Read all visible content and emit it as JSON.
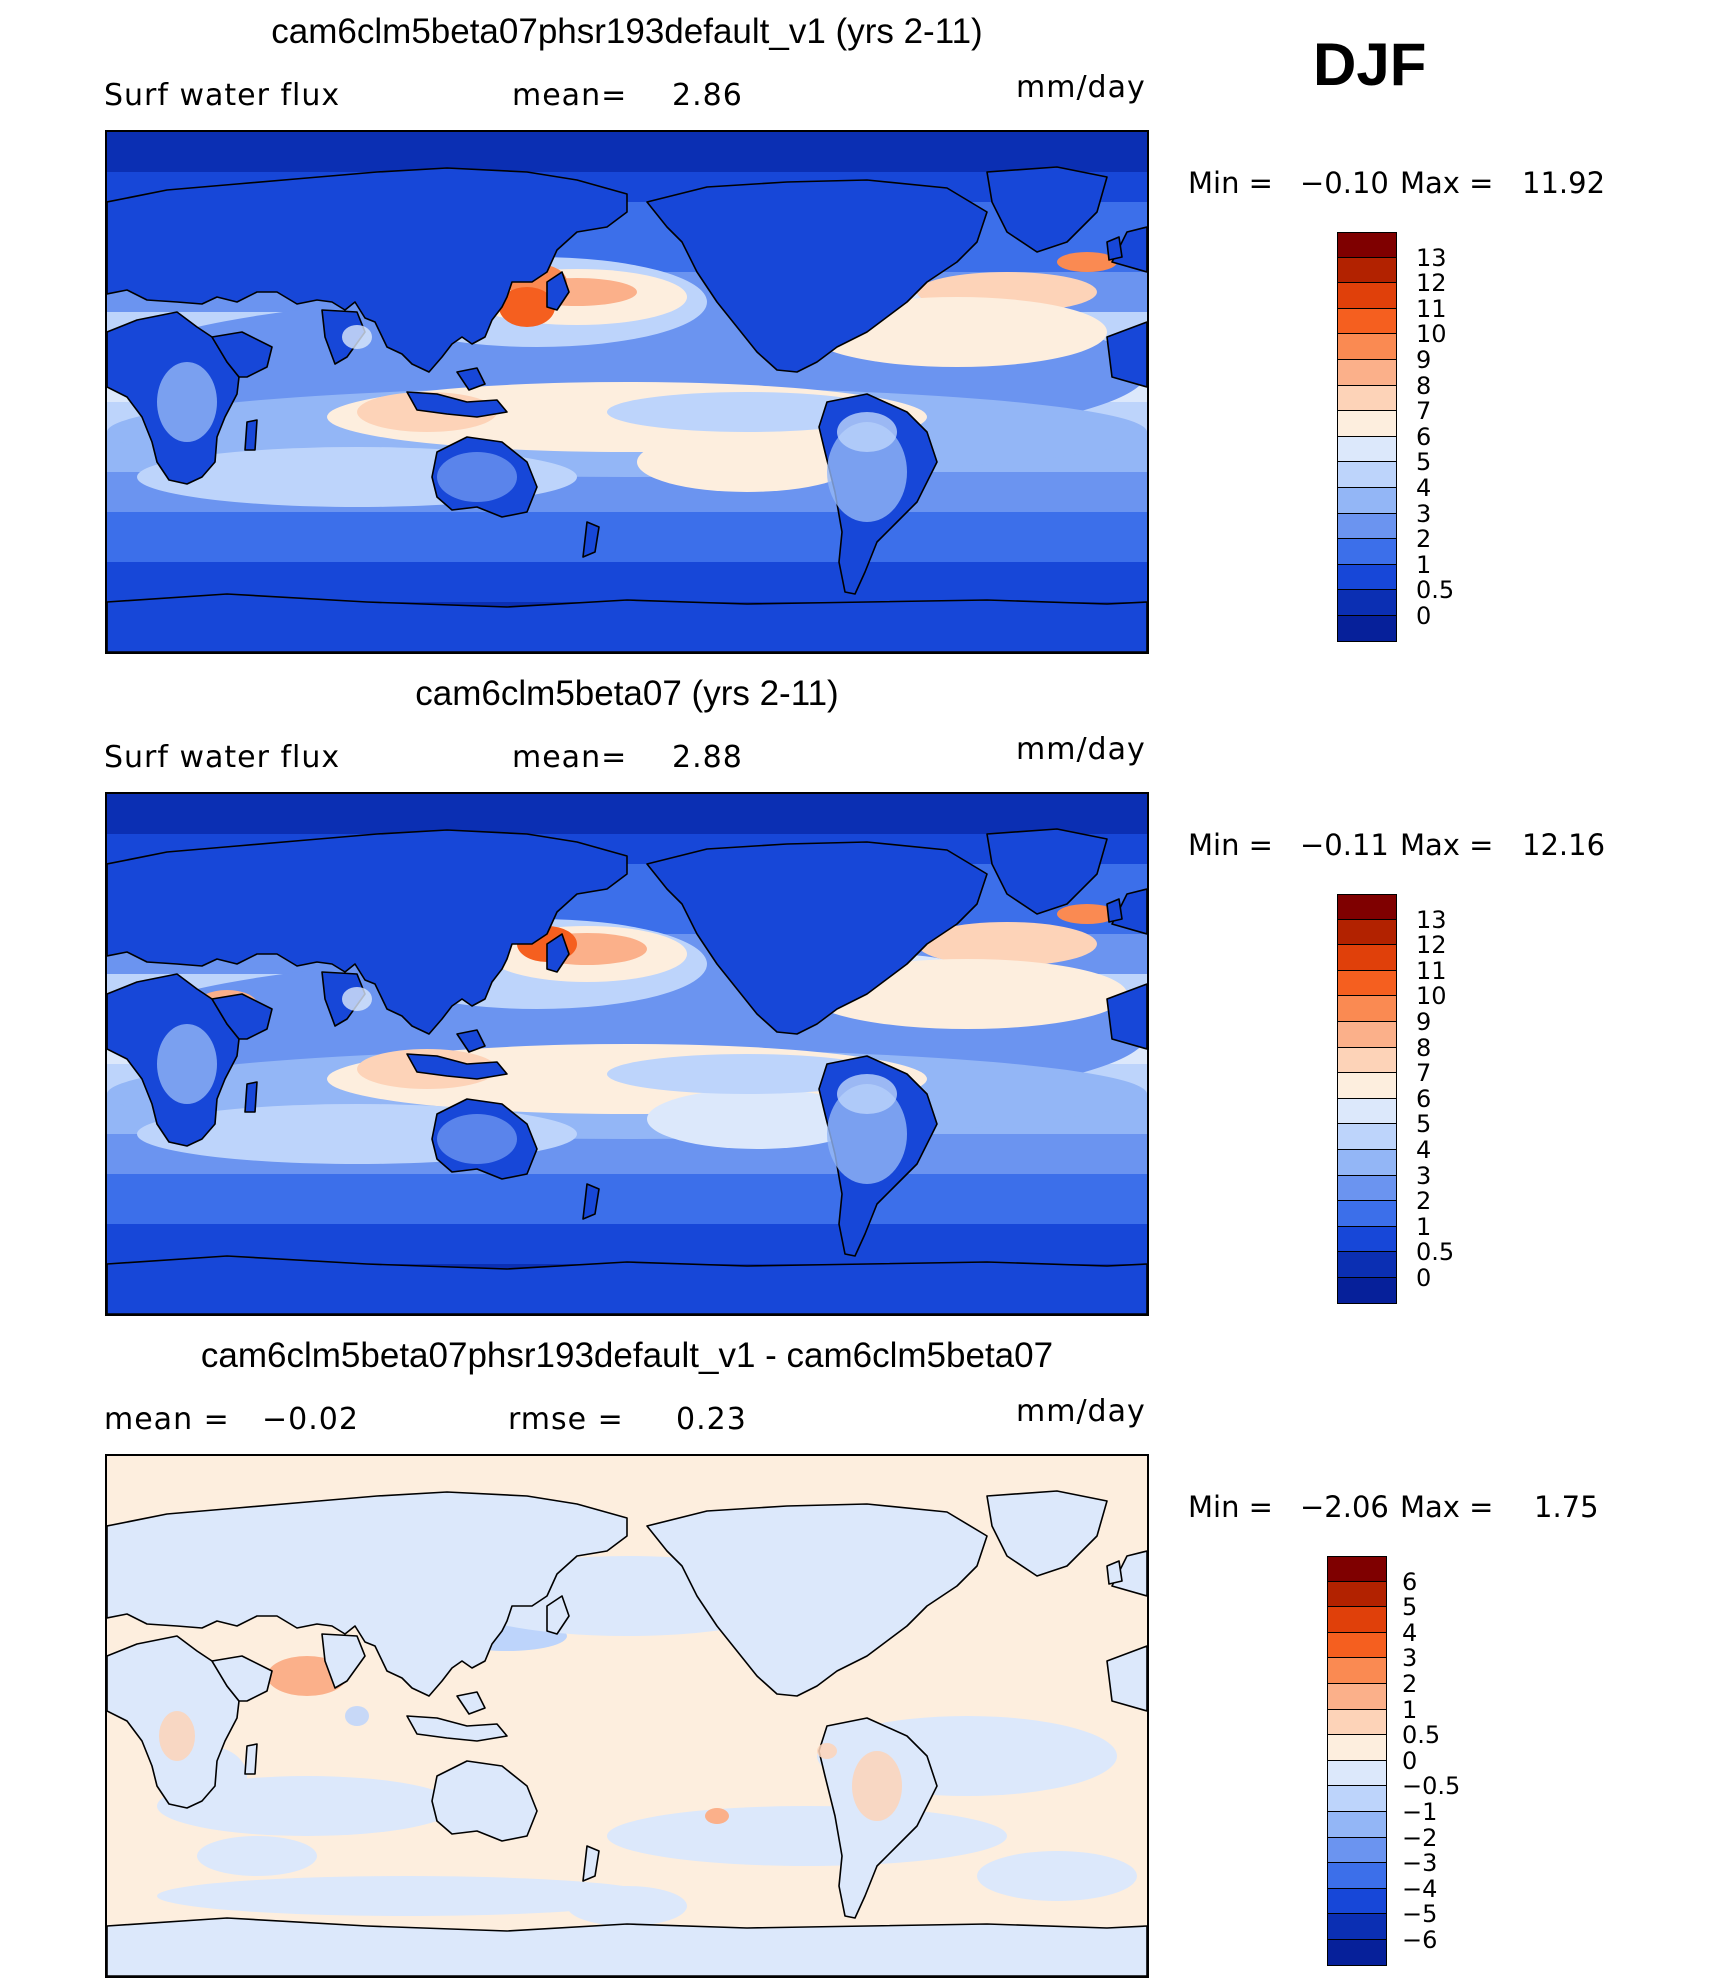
{
  "season": "DJF",
  "panels": [
    {
      "title": "cam6clm5beta07phsr193default_v1 (yrs 2-11)",
      "variable": "Surf water flux",
      "stat1_label": "mean=",
      "stat1_value": "2.86",
      "units": "mm/day",
      "min_label": "Min =",
      "min_value": "−0.10",
      "max_label": "Max =",
      "max_value": "11.92",
      "colorbar": {
        "labels": [
          "13",
          "12",
          "11",
          "10",
          "9",
          "8",
          "7",
          "6",
          "5",
          "4",
          "3",
          "2",
          "1",
          "0.5",
          "0"
        ],
        "colors": [
          "#7f0000",
          "#b22200",
          "#e0400a",
          "#f55f1f",
          "#fa8a52",
          "#fbb08a",
          "#fdd3b8",
          "#fdeede",
          "#dce8fb",
          "#bdd4fb",
          "#93b6f6",
          "#6b94f0",
          "#3c6fea",
          "#1747d8",
          "#0b2fb3",
          "#06209a"
        ]
      },
      "map_scheme": "absolute"
    },
    {
      "title": "cam6clm5beta07 (yrs 2-11)",
      "variable": "Surf water flux",
      "stat1_label": "mean=",
      "stat1_value": "2.88",
      "units": "mm/day",
      "min_label": "Min =",
      "min_value": "−0.11",
      "max_label": "Max =",
      "max_value": "12.16",
      "colorbar": {
        "labels": [
          "13",
          "12",
          "11",
          "10",
          "9",
          "8",
          "7",
          "6",
          "5",
          "4",
          "3",
          "2",
          "1",
          "0.5",
          "0"
        ],
        "colors": [
          "#7f0000",
          "#b22200",
          "#e0400a",
          "#f55f1f",
          "#fa8a52",
          "#fbb08a",
          "#fdd3b8",
          "#fdeede",
          "#dce8fb",
          "#bdd4fb",
          "#93b6f6",
          "#6b94f0",
          "#3c6fea",
          "#1747d8",
          "#0b2fb3",
          "#06209a"
        ]
      },
      "map_scheme": "absolute"
    },
    {
      "title": "cam6clm5beta07phsr193default_v1 - cam6clm5beta07",
      "stat1_label": "mean =",
      "stat1_value": "−0.02",
      "stat2_label": "rmse =",
      "stat2_value": "0.23",
      "units": "mm/day",
      "min_label": "Min =",
      "min_value": "−2.06",
      "max_label": "Max =",
      "max_value": "1.75",
      "colorbar": {
        "labels": [
          "6",
          "5",
          "4",
          "3",
          "2",
          "1",
          "0.5",
          "0",
          "−0.5",
          "−1",
          "−2",
          "−3",
          "−4",
          "−5",
          "−6"
        ],
        "colors": [
          "#7f0000",
          "#b22200",
          "#e0400a",
          "#f55f1f",
          "#fa8a52",
          "#fbb08a",
          "#fdd3b8",
          "#fdeede",
          "#dce8fb",
          "#bdd4fb",
          "#93b6f6",
          "#6b94f0",
          "#3c6fea",
          "#1747d8",
          "#0b2fb3",
          "#06209a"
        ]
      },
      "map_scheme": "difference"
    }
  ]
}
